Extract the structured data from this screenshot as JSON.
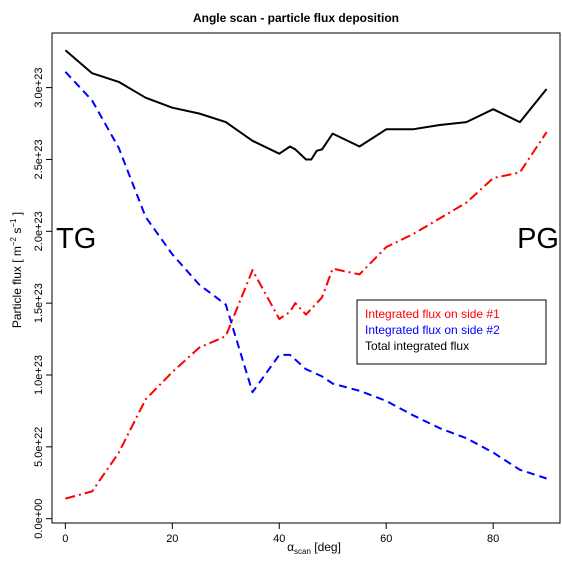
{
  "chart_data": {
    "type": "line",
    "title": "Angle scan - particle flux deposition",
    "xlabel": "α_scan [deg]",
    "xlabel_main": "α",
    "xlabel_sub": "scan",
    "xlabel_unit": " [deg]",
    "ylabel_main": "Particle flux [ m",
    "ylabel_exp1": "−2",
    "ylabel_mid": " s",
    "ylabel_exp2": "−1",
    "ylabel_end": " ]",
    "xlim": [
      -2.5,
      92.5
    ],
    "ylim": [
      -3e+21,
      3.38e+23
    ],
    "x_ticks": [
      0,
      20,
      40,
      60,
      80
    ],
    "x_tick_labels": [
      "0",
      "20",
      "40",
      "60",
      "80"
    ],
    "y_ticks": [
      0,
      5e+22,
      1e+23,
      1.5e+23,
      2e+23,
      2.5e+23,
      3e+23
    ],
    "y_tick_labels": [
      "0.0e+00",
      "5.0e+22",
      "1.0e+23",
      "1.5e+23",
      "2.0e+23",
      "2.5e+23",
      "3.0e+23"
    ],
    "annotations": {
      "left": "TG",
      "right": "PG"
    },
    "legend_position": "center-right",
    "series": [
      {
        "name": "Integrated flux on side #1",
        "color": "#ff0000",
        "dash": "dotdash",
        "x": [
          0,
          5,
          10,
          15,
          20,
          25,
          30,
          35,
          40,
          42,
          43,
          45,
          47,
          48,
          50,
          55,
          60,
          65,
          70,
          75,
          80,
          85,
          90
        ],
        "y": [
          1.4e+22,
          1.9e+22,
          4.6e+22,
          8.3e+22,
          1.02e+23,
          1.19e+23,
          1.27e+23,
          1.73e+23,
          1.39e+23,
          1.44e+23,
          1.5e+23,
          1.42e+23,
          1.5e+23,
          1.54e+23,
          1.74e+23,
          1.7e+23,
          1.89e+23,
          1.98e+23,
          2.09e+23,
          2.2e+23,
          2.37e+23,
          2.41e+23,
          2.69e+23
        ]
      },
      {
        "name": "Integrated flux on side #2",
        "color": "#0000ff",
        "dash": "dashed",
        "x": [
          0,
          5,
          10,
          15,
          20,
          25,
          30,
          35,
          40,
          42,
          45,
          48,
          50,
          55,
          60,
          65,
          70,
          75,
          80,
          85,
          90
        ],
        "y": [
          3.11e+23,
          2.91e+23,
          2.58e+23,
          2.1e+23,
          1.84e+23,
          1.63e+23,
          1.49e+23,
          8.8e+22,
          1.14e+23,
          1.14e+23,
          1.04e+23,
          9.9e+22,
          9.4e+22,
          8.9e+22,
          8.2e+22,
          7.2e+22,
          6.3e+22,
          5.6e+22,
          4.6e+22,
          3.4e+22,
          2.8e+22
        ]
      },
      {
        "name": "Total integrated flux",
        "color": "#000000",
        "dash": "solid",
        "x": [
          0,
          5,
          10,
          15,
          20,
          25,
          30,
          35,
          40,
          42,
          43,
          45,
          46,
          47,
          48,
          50,
          55,
          60,
          65,
          70,
          75,
          80,
          85,
          90
        ],
        "y": [
          3.26e+23,
          3.1e+23,
          3.04e+23,
          2.93e+23,
          2.86e+23,
          2.82e+23,
          2.76e+23,
          2.63e+23,
          2.54e+23,
          2.59e+23,
          2.57e+23,
          2.5e+23,
          2.5e+23,
          2.56e+23,
          2.57e+23,
          2.68e+23,
          2.59e+23,
          2.71e+23,
          2.71e+23,
          2.74e+23,
          2.76e+23,
          2.85e+23,
          2.76e+23,
          2.99e+23
        ]
      }
    ]
  }
}
